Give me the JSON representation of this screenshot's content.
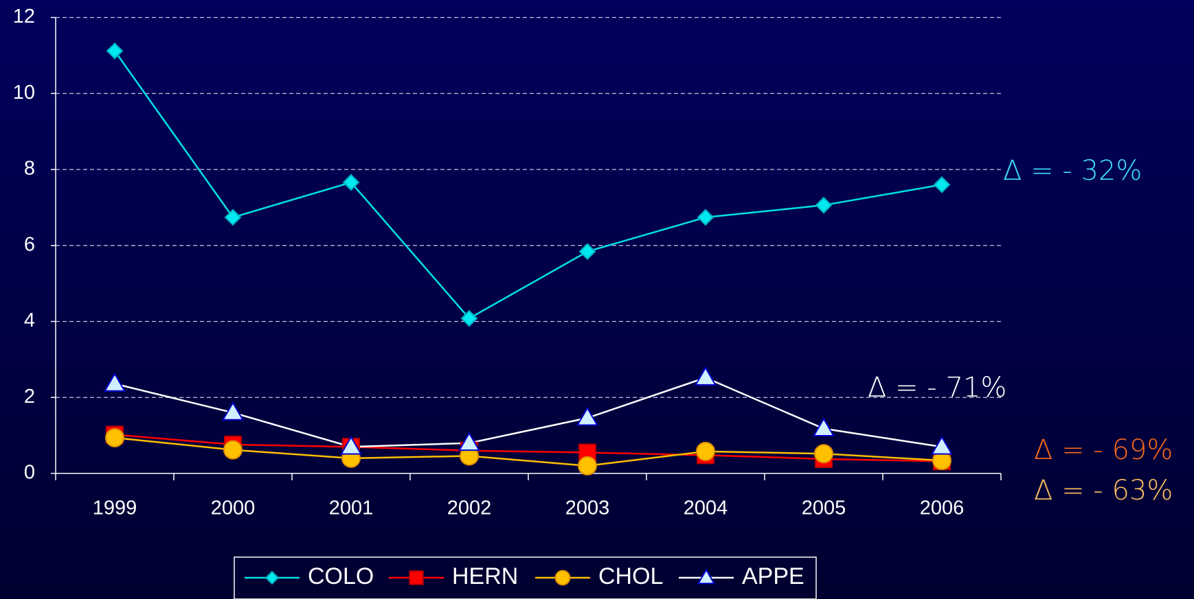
{
  "chart_data": {
    "type": "line",
    "categories": [
      "1999",
      "2000",
      "2001",
      "2002",
      "2003",
      "2004",
      "2005",
      "2006"
    ],
    "series": [
      {
        "name": "COLO",
        "color": "#00e0e8",
        "marker": "diamond",
        "values": [
          11.12,
          6.74,
          7.66,
          4.08,
          5.84,
          6.74,
          7.06,
          7.6
        ]
      },
      {
        "name": "HERN",
        "color": "#ff0000",
        "marker": "square",
        "values": [
          1.02,
          0.76,
          0.7,
          0.6,
          0.55,
          0.48,
          0.38,
          0.32
        ]
      },
      {
        "name": "CHOL",
        "color": "#ffc000",
        "marker": "circle",
        "values": [
          0.94,
          0.62,
          0.4,
          0.46,
          0.2,
          0.58,
          0.52,
          0.34
        ]
      },
      {
        "name": "APPE",
        "color": "#ffffff",
        "marker": "triangle",
        "values": [
          2.36,
          1.6,
          0.7,
          0.8,
          1.46,
          2.52,
          1.18,
          0.7
        ]
      }
    ],
    "ylim": [
      0,
      12
    ],
    "yticks": [
      0,
      2,
      4,
      6,
      8,
      10,
      12
    ],
    "grid": true,
    "legend": "bottom",
    "annotations": [
      {
        "text": "Δ = - 32%",
        "color": "#40e0ff"
      },
      {
        "text": "Δ = - 71%",
        "color": "#ffffff"
      },
      {
        "text": "Δ = - 69%",
        "color": "#ff6a1a"
      },
      {
        "text": "Δ = - 63%",
        "color": "#ffc060"
      }
    ]
  }
}
